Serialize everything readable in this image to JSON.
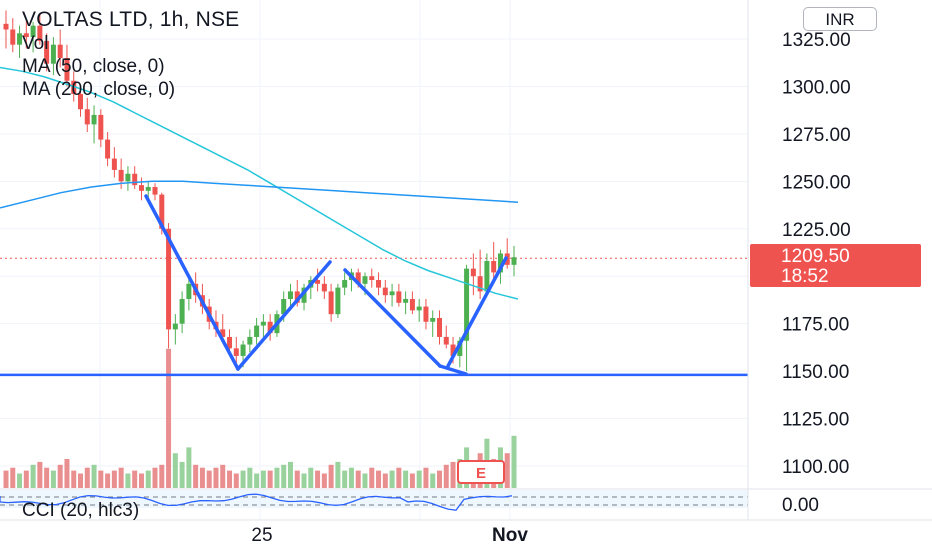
{
  "chart_data": {
    "type": "candlestick",
    "symbol_title": "VOLTAS LTD, 1h, NSE",
    "indicators": [
      "Vol",
      "MA (50, close, 0)",
      "MA (200, close, 0)"
    ],
    "currency": "INR",
    "y_ticks": [
      "1325.00",
      "1300.00",
      "1275.00",
      "1250.00",
      "1225.00",
      "1175.00",
      "1150.00",
      "1125.00",
      "1100.00"
    ],
    "ylim": [
      1092,
      1333
    ],
    "x_ticks": [
      "25",
      "Nov"
    ],
    "last_price": "1209.50",
    "countdown": "18:52",
    "cci_label": "CCI (20, hlc3)",
    "cci_tick": "0.00",
    "earnings_marker": "E",
    "support_level": 1148,
    "colors": {
      "up": "#4caf50",
      "down": "#ef5350",
      "ma50": "#26c6da",
      "ma200": "#2196f3",
      "drawing": "#2962ff",
      "cci": "#2962ff"
    },
    "candles": [
      [
        1333,
        1340,
        1320,
        1330
      ],
      [
        1330,
        1336,
        1318,
        1322
      ],
      [
        1322,
        1332,
        1315,
        1328
      ],
      [
        1328,
        1335,
        1320,
        1326
      ],
      [
        1326,
        1334,
        1318,
        1332
      ],
      [
        1332,
        1338,
        1322,
        1324
      ],
      [
        1324,
        1328,
        1308,
        1312
      ],
      [
        1312,
        1326,
        1306,
        1322
      ],
      [
        1322,
        1330,
        1310,
        1315
      ],
      [
        1315,
        1322,
        1300,
        1303
      ],
      [
        1303,
        1308,
        1292,
        1296
      ],
      [
        1296,
        1300,
        1284,
        1288
      ],
      [
        1288,
        1294,
        1276,
        1280
      ],
      [
        1280,
        1290,
        1270,
        1285
      ],
      [
        1285,
        1288,
        1268,
        1272
      ],
      [
        1272,
        1276,
        1258,
        1262
      ],
      [
        1262,
        1268,
        1252,
        1256
      ],
      [
        1256,
        1262,
        1246,
        1250
      ],
      [
        1250,
        1258,
        1245,
        1254
      ],
      [
        1254,
        1258,
        1246,
        1248
      ],
      [
        1248,
        1252,
        1240,
        1245
      ],
      [
        1245,
        1250,
        1240,
        1247
      ],
      [
        1247,
        1249,
        1240,
        1243
      ],
      [
        1243,
        1244,
        1222,
        1225
      ],
      [
        1225,
        1228,
        1162,
        1172
      ],
      [
        1172,
        1180,
        1164,
        1175
      ],
      [
        1175,
        1192,
        1170,
        1188
      ],
      [
        1188,
        1200,
        1182,
        1196
      ],
      [
        1196,
        1202,
        1186,
        1190
      ],
      [
        1190,
        1196,
        1180,
        1184
      ],
      [
        1184,
        1188,
        1172,
        1176
      ],
      [
        1176,
        1182,
        1168,
        1172
      ],
      [
        1172,
        1180,
        1166,
        1168
      ],
      [
        1168,
        1172,
        1158,
        1162
      ],
      [
        1162,
        1168,
        1154,
        1158
      ],
      [
        1158,
        1166,
        1152,
        1164
      ],
      [
        1164,
        1172,
        1160,
        1168
      ],
      [
        1168,
        1178,
        1164,
        1174
      ],
      [
        1174,
        1180,
        1168,
        1176
      ],
      [
        1176,
        1180,
        1166,
        1170
      ],
      [
        1170,
        1182,
        1168,
        1180
      ],
      [
        1180,
        1192,
        1176,
        1188
      ],
      [
        1188,
        1196,
        1182,
        1192
      ],
      [
        1192,
        1198,
        1184,
        1186
      ],
      [
        1186,
        1196,
        1182,
        1194
      ],
      [
        1194,
        1200,
        1188,
        1198
      ],
      [
        1198,
        1204,
        1192,
        1196
      ],
      [
        1196,
        1200,
        1188,
        1192
      ],
      [
        1192,
        1196,
        1176,
        1180
      ],
      [
        1180,
        1196,
        1178,
        1194
      ],
      [
        1194,
        1202,
        1190,
        1198
      ],
      [
        1198,
        1204,
        1192,
        1202
      ],
      [
        1202,
        1204,
        1194,
        1196
      ],
      [
        1196,
        1202,
        1190,
        1200
      ],
      [
        1200,
        1204,
        1194,
        1198
      ],
      [
        1198,
        1202,
        1190,
        1194
      ],
      [
        1194,
        1198,
        1186,
        1190
      ],
      [
        1190,
        1196,
        1184,
        1192
      ],
      [
        1192,
        1196,
        1184,
        1186
      ],
      [
        1186,
        1192,
        1180,
        1188
      ],
      [
        1188,
        1192,
        1180,
        1182
      ],
      [
        1182,
        1188,
        1176,
        1184
      ],
      [
        1184,
        1188,
        1172,
        1176
      ],
      [
        1176,
        1182,
        1168,
        1178
      ],
      [
        1178,
        1182,
        1164,
        1168
      ],
      [
        1168,
        1174,
        1162,
        1164
      ],
      [
        1164,
        1168,
        1154,
        1158
      ],
      [
        1158,
        1168,
        1152,
        1166
      ],
      [
        1166,
        1206,
        1150,
        1204
      ],
      [
        1204,
        1212,
        1190,
        1200
      ],
      [
        1200,
        1214,
        1188,
        1192
      ],
      [
        1192,
        1212,
        1190,
        1208
      ],
      [
        1208,
        1218,
        1198,
        1202
      ],
      [
        1202,
        1214,
        1196,
        1212
      ],
      [
        1212,
        1220,
        1204,
        1206
      ],
      [
        1206,
        1216,
        1200,
        1210
      ]
    ],
    "volumes": [
      6,
      7,
      5,
      6,
      8,
      9,
      7,
      6,
      8,
      10,
      6,
      5,
      7,
      8,
      6,
      5,
      6,
      7,
      5,
      6,
      5,
      6,
      7,
      8,
      48,
      12,
      9,
      14,
      8,
      7,
      6,
      7,
      8,
      6,
      5,
      6,
      7,
      5,
      6,
      6,
      7,
      8,
      9,
      6,
      5,
      7,
      6,
      5,
      8,
      9,
      6,
      7,
      6,
      5,
      7,
      6,
      5,
      6,
      7,
      6,
      5,
      6,
      7,
      5,
      6,
      8,
      9,
      10,
      14,
      9,
      12,
      17,
      10,
      14,
      12,
      18
    ],
    "ma50": [
      1310,
      1308,
      1305,
      1301,
      1297,
      1292,
      1286,
      1280,
      1274,
      1268,
      1262,
      1256,
      1249,
      1242,
      1235,
      1228,
      1221,
      1214,
      1208,
      1203,
      1199,
      1195,
      1191,
      1188
    ],
    "ma200": [
      1236,
      1240,
      1244,
      1247,
      1249,
      1250,
      1250,
      1249,
      1248,
      1247,
      1246,
      1245,
      1244,
      1243,
      1242,
      1241,
      1240,
      1239
    ]
  }
}
